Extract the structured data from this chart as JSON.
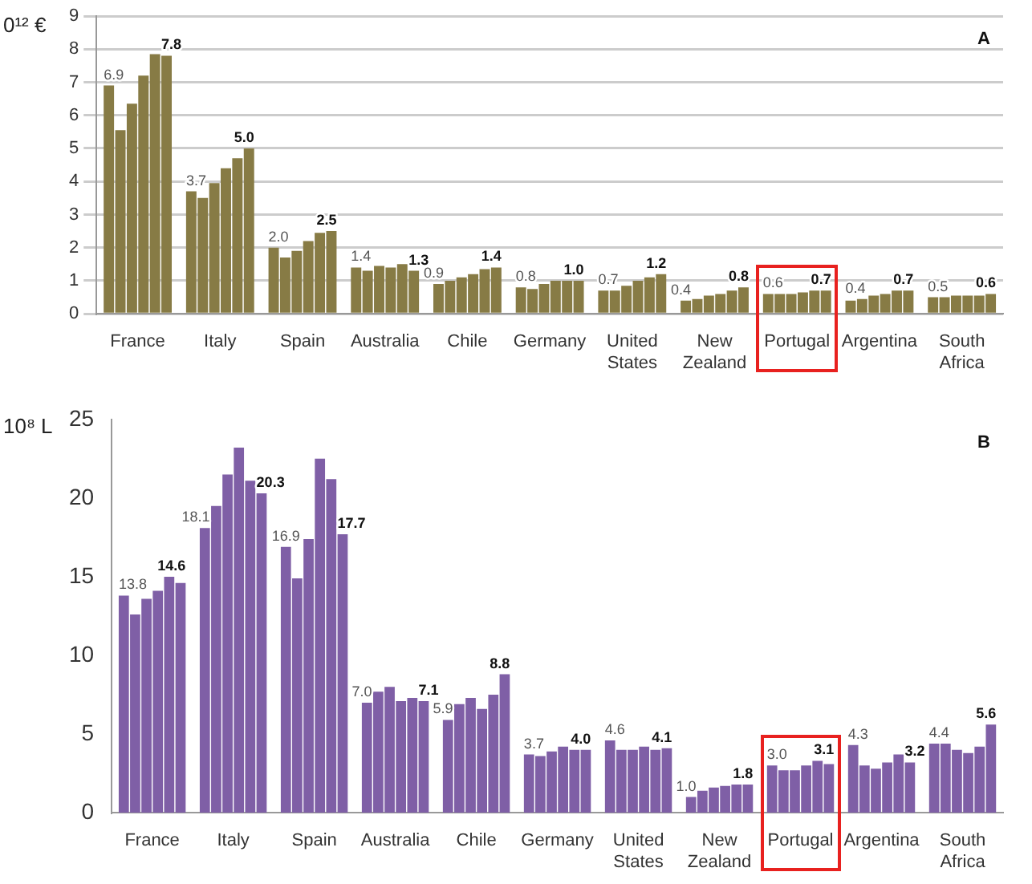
{
  "chart_data": [
    {
      "type": "bar",
      "ylabel": "0¹² €",
      "annotations": [
        "A"
      ],
      "categories": [
        "France",
        "Italy",
        "Spain",
        "Australia",
        "Chile",
        "Germany",
        "United States",
        "New Zealand",
        "Portugal",
        "Argentina",
        "South Africa"
      ],
      "series": [
        {
          "color": "#877b45",
          "values": [
            6.9,
            3.7,
            2.0,
            1.4,
            0.9,
            0.8,
            0.7,
            0.4,
            0.6,
            0.4,
            0.5
          ],
          "value_labels": [
            "6.9",
            "3.7",
            "2.0",
            "1.4",
            "0.9",
            "0.8",
            "0.7",
            "0.4",
            "0.6",
            "0.4",
            "0.5"
          ]
        },
        {
          "color": "#877b45",
          "values": [
            5.55,
            3.5,
            1.7,
            1.3,
            1.0,
            0.75,
            0.7,
            0.45,
            0.6,
            0.45,
            0.5
          ]
        },
        {
          "color": "#877b45",
          "values": [
            6.35,
            3.95,
            1.9,
            1.45,
            1.1,
            0.9,
            0.85,
            0.55,
            0.6,
            0.55,
            0.55
          ]
        },
        {
          "color": "#877b45",
          "values": [
            7.2,
            4.4,
            2.2,
            1.4,
            1.2,
            1.0,
            1.0,
            0.6,
            0.65,
            0.6,
            0.55
          ]
        },
        {
          "color": "#877b45",
          "values": [
            7.85,
            4.7,
            2.45,
            1.5,
            1.35,
            1.0,
            1.1,
            0.7,
            0.7,
            0.7,
            0.55
          ]
        },
        {
          "color": "#877b45",
          "values": [
            7.8,
            5.0,
            2.5,
            1.3,
            1.4,
            1.0,
            1.2,
            0.8,
            0.7,
            0.7,
            0.6
          ],
          "value_labels": [
            "7.8",
            "5.0",
            "2.5",
            "1.3",
            "1.4",
            "1.0",
            "1.2",
            "0.8",
            "0.7",
            "0.7",
            "0.6"
          ]
        }
      ],
      "ylim": [
        0,
        9
      ],
      "yticks": [
        0,
        1,
        2,
        3,
        4,
        5,
        6,
        7,
        8,
        9
      ],
      "grid": "y",
      "legend": false
    },
    {
      "type": "bar",
      "ylabel": "10⁸ L",
      "annotations": [
        "B"
      ],
      "categories": [
        "France",
        "Italy",
        "Spain",
        "Australia",
        "Chile",
        "Germany",
        "United States",
        "New Zealand",
        "Portugal",
        "Argentina",
        "South Africa"
      ],
      "series": [
        {
          "color": "#7f5fa6",
          "values": [
            13.8,
            18.1,
            16.9,
            7.0,
            5.9,
            3.7,
            4.6,
            1.0,
            3.0,
            4.3,
            4.4
          ],
          "value_labels": [
            "13.8",
            "18.1",
            "16.9",
            "7.0",
            "5.9",
            "3.7",
            "4.6",
            "1.0",
            "3.0",
            "4.3",
            "4.4"
          ]
        },
        {
          "color": "#7f5fa6",
          "values": [
            12.6,
            19.5,
            14.9,
            7.7,
            6.9,
            3.6,
            4.0,
            1.4,
            2.7,
            3.0,
            4.4
          ]
        },
        {
          "color": "#7f5fa6",
          "values": [
            13.6,
            21.5,
            17.4,
            8.0,
            7.3,
            3.9,
            4.0,
            1.6,
            2.7,
            2.8,
            4.0
          ]
        },
        {
          "color": "#7f5fa6",
          "values": [
            14.1,
            23.2,
            22.5,
            7.1,
            6.6,
            4.2,
            4.2,
            1.7,
            3.0,
            3.2,
            3.8
          ]
        },
        {
          "color": "#7f5fa6",
          "values": [
            15.0,
            21.1,
            21.2,
            7.3,
            7.5,
            4.0,
            4.0,
            1.8,
            3.3,
            3.7,
            4.2
          ]
        },
        {
          "color": "#7f5fa6",
          "values": [
            14.6,
            20.3,
            17.7,
            7.1,
            8.8,
            4.0,
            4.1,
            1.8,
            3.1,
            3.2,
            5.6
          ],
          "value_labels": [
            "14.6",
            "20.3",
            "17.7",
            "7.1",
            "8.8",
            "4.0",
            "4.1",
            "1.8",
            "3.1",
            "3.2",
            "5.6"
          ]
        }
      ],
      "ylim": [
        0,
        25
      ],
      "yticks": [
        0,
        5,
        10,
        15,
        20,
        25
      ],
      "grid": false,
      "legend": false
    }
  ]
}
